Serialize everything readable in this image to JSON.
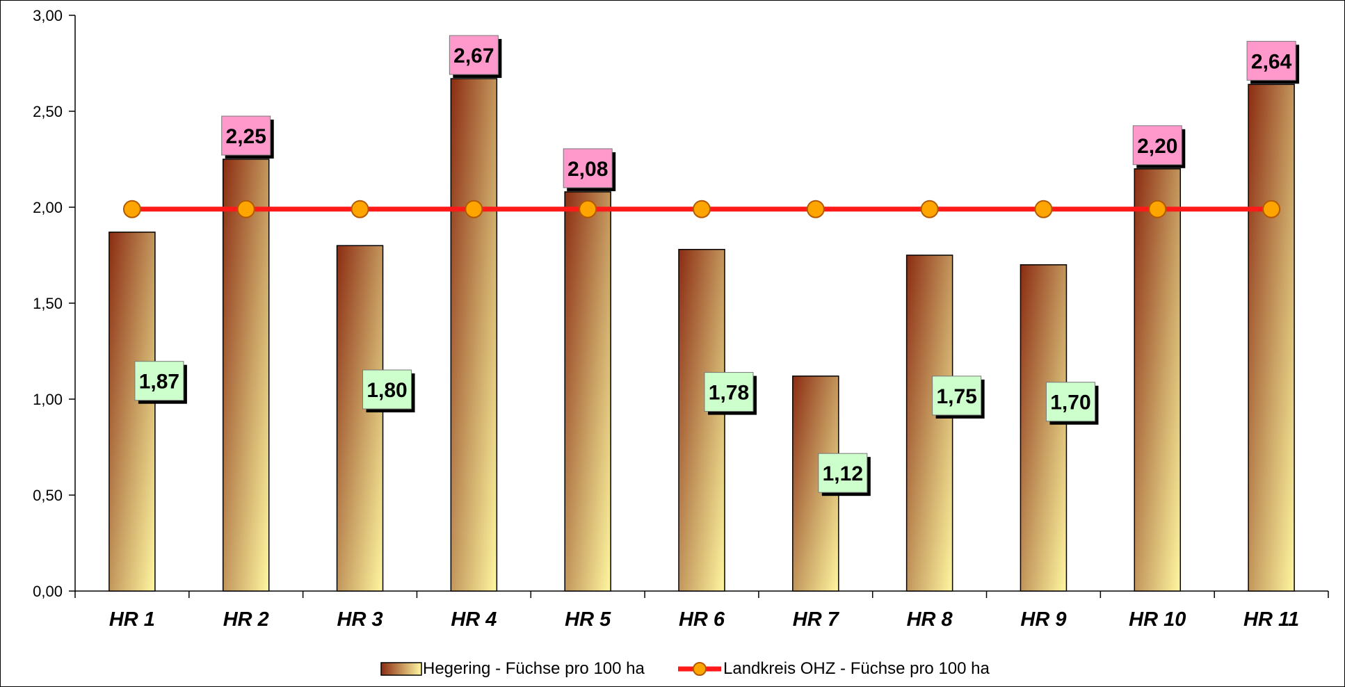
{
  "chart_data": {
    "type": "bar",
    "title": "",
    "xlabel": "",
    "ylabel": "",
    "categories": [
      "HR 1",
      "HR 2",
      "HR 3",
      "HR 4",
      "HR 5",
      "HR 6",
      "HR 7",
      "HR 8",
      "HR 9",
      "HR 10",
      "HR 11"
    ],
    "series": [
      {
        "name": "Hegering - Füchse pro 100 ha",
        "kind": "bar",
        "values": [
          1.87,
          2.25,
          1.8,
          2.67,
          2.08,
          1.78,
          1.12,
          1.75,
          1.7,
          2.2,
          2.64
        ],
        "data_labels": [
          "1,87",
          "2,25",
          "1,80",
          "2,67",
          "2,08",
          "1,78",
          "1,12",
          "1,75",
          "1,70",
          "2,20",
          "2,64"
        ]
      },
      {
        "name": "Landkreis OHZ - Füchse pro 100 ha",
        "kind": "line",
        "values": [
          1.99,
          1.99,
          1.99,
          1.99,
          1.99,
          1.99,
          1.99,
          1.99,
          1.99,
          1.99,
          1.99
        ]
      }
    ],
    "ylim": [
      0,
      3
    ],
    "yticks": [
      0,
      0.5,
      1,
      1.5,
      2,
      2.5,
      3
    ],
    "ytick_labels": [
      "0,00",
      "0,50",
      "1,00",
      "1,50",
      "2,00",
      "2,50",
      "3,00"
    ],
    "grid": false,
    "legend_position": "bottom-center",
    "colors": {
      "bar_gradient_dark": "#8b2c12",
      "bar_gradient_mid": "#c8a063",
      "bar_gradient_light": "#fff7a0",
      "line": "#ff1a1a",
      "marker_fill": "#ffa500",
      "marker_stroke": "#b35a00",
      "label_above_avg_bg": "#ff99cc",
      "label_below_avg_bg": "#ccffcc"
    }
  }
}
